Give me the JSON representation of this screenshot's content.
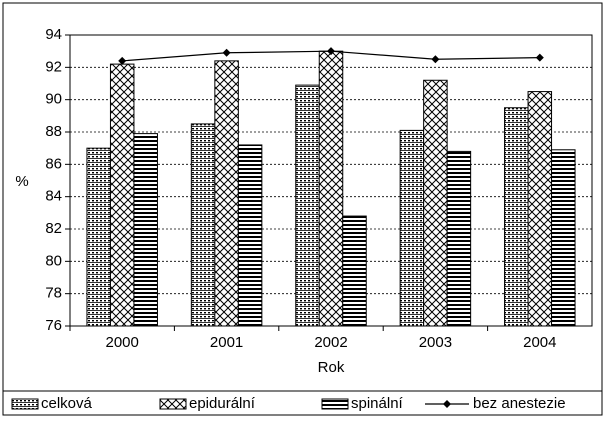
{
  "chart_data": {
    "type": "bar",
    "categories": [
      "2000",
      "2001",
      "2002",
      "2003",
      "2004"
    ],
    "x_label": "Rok",
    "y_label": "%",
    "ylim": [
      76,
      94
    ],
    "yticks": [
      76,
      78,
      80,
      82,
      84,
      86,
      88,
      90,
      92,
      94
    ],
    "grid": true,
    "series": [
      {
        "name": "celková",
        "color": "#000000",
        "hatch": "dots",
        "values": [
          87.0,
          88.5,
          90.9,
          88.1,
          89.5
        ]
      },
      {
        "name": "epidurální",
        "color": "#000000",
        "hatch": "cross",
        "values": [
          92.2,
          92.4,
          93.0,
          91.2,
          90.5
        ]
      },
      {
        "name": "spinální",
        "color": "#000000",
        "hatch": "lines",
        "values": [
          87.9,
          87.2,
          82.8,
          86.8,
          86.9
        ]
      },
      {
        "name": "bez anestezie",
        "color": "#000000",
        "kind": "line",
        "values": [
          92.4,
          92.9,
          93.0,
          92.5,
          92.6
        ]
      }
    ]
  }
}
